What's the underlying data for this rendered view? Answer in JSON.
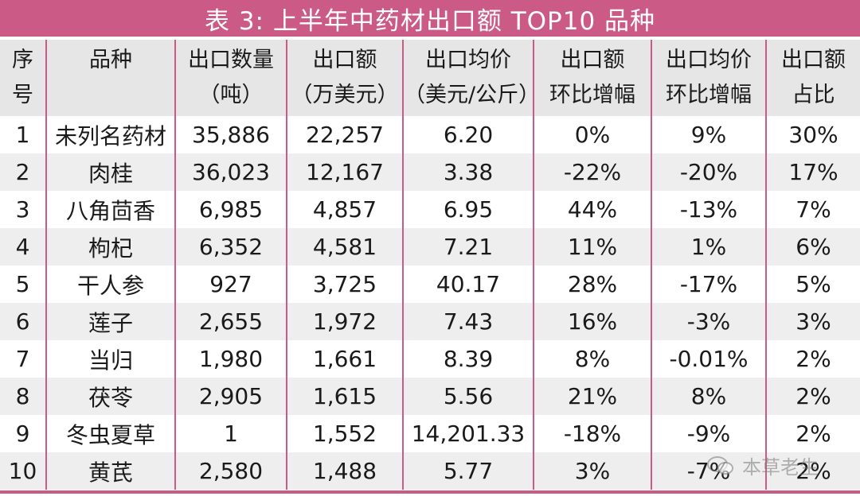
{
  "title": "表 3: 上半年中药材出口额 TOP10 品种",
  "header": [
    [
      "序",
      "号"
    ],
    [
      "品种"
    ],
    [
      "出口数量",
      "（吨）"
    ],
    [
      "出口额",
      "（万美元）"
    ],
    [
      "出口均价",
      "（美元/公斤）"
    ],
    [
      "出口额",
      "环比增幅"
    ],
    [
      "出口均价",
      "环比增幅"
    ],
    [
      "出口额",
      "占比"
    ]
  ],
  "rows": [
    [
      "1",
      "未列名药材",
      "35,886",
      "22,257",
      "6.20",
      "0%",
      "9%",
      "30%"
    ],
    [
      "2",
      "肉桂",
      "36,023",
      "12,167",
      "3.38",
      "-22%",
      "-20%",
      "17%"
    ],
    [
      "3",
      "八角茴香",
      "6,985",
      "4,857",
      "6.95",
      "44%",
      "-13%",
      "7%"
    ],
    [
      "4",
      "枸杞",
      "6,352",
      "4,581",
      "7.21",
      "11%",
      "1%",
      "6%"
    ],
    [
      "5",
      "干人参",
      "927",
      "3,725",
      "40.17",
      "28%",
      "-17%",
      "5%"
    ],
    [
      "6",
      "莲子",
      "2,655",
      "1,972",
      "7.43",
      "16%",
      "-3%",
      "3%"
    ],
    [
      "7",
      "当归",
      "1,980",
      "1,661",
      "8.39",
      "8%",
      "-0.01%",
      "2%"
    ],
    [
      "8",
      "茯苓",
      "2,905",
      "1,615",
      "5.56",
      "21%",
      "8%",
      "2%"
    ],
    [
      "9",
      "冬虫夏草",
      "1",
      "1,552",
      "14,201.33",
      "-18%",
      "-9%",
      "2%"
    ],
    [
      "10",
      "黄芪",
      "2,580",
      "1,488",
      "5.77",
      "3%",
      "-7%",
      "2%"
    ]
  ],
  "watermark": "本草老生",
  "colors": {
    "accent": "#cc5a86",
    "header_bg": "#e6e6e6",
    "alt_row_bg": "#eeeeee"
  }
}
